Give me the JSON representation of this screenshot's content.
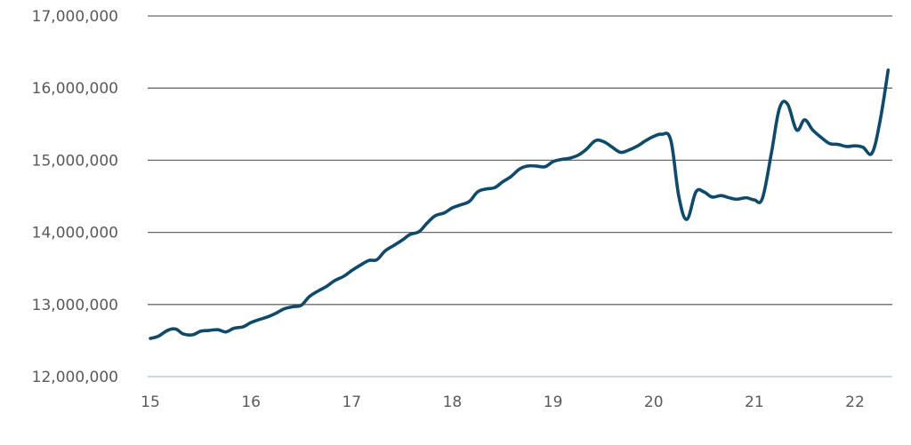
{
  "chart_data": {
    "type": "line",
    "title": "",
    "xlabel": "",
    "ylabel": "",
    "xlim": [
      15,
      22.35
    ],
    "ylim": [
      12000000,
      17000000
    ],
    "grid": true,
    "legend": "none",
    "x_ticks": [
      {
        "value": 15,
        "label": "15"
      },
      {
        "value": 16,
        "label": "16"
      },
      {
        "value": 17,
        "label": "17"
      },
      {
        "value": 18,
        "label": "18"
      },
      {
        "value": 19,
        "label": "19"
      },
      {
        "value": 20,
        "label": "20"
      },
      {
        "value": 21,
        "label": "21"
      },
      {
        "value": 22,
        "label": "22"
      }
    ],
    "y_ticks": [
      {
        "value": 12000000,
        "label": "12,000,000"
      },
      {
        "value": 13000000,
        "label": "13,000,000"
      },
      {
        "value": 14000000,
        "label": "14,000,000"
      },
      {
        "value": 15000000,
        "label": "15,000,000"
      },
      {
        "value": 16000000,
        "label": "16,000,000"
      },
      {
        "value": 17000000,
        "label": "17,000,000"
      }
    ],
    "series": [
      {
        "color": "#0d4a6b",
        "x": [
          15.0,
          15.08,
          15.17,
          15.25,
          15.33,
          15.42,
          15.5,
          15.58,
          15.67,
          15.75,
          15.83,
          15.92,
          16.0,
          16.08,
          16.17,
          16.25,
          16.33,
          16.42,
          16.5,
          16.58,
          16.67,
          16.75,
          16.83,
          16.92,
          17.0,
          17.08,
          17.17,
          17.25,
          17.33,
          17.42,
          17.5,
          17.58,
          17.67,
          17.75,
          17.83,
          17.92,
          18.0,
          18.08,
          18.17,
          18.25,
          18.33,
          18.42,
          18.5,
          18.58,
          18.67,
          18.75,
          18.83,
          18.92,
          19.0,
          19.08,
          19.17,
          19.25,
          19.33,
          19.42,
          19.5,
          19.58,
          19.67,
          19.75,
          19.83,
          19.92,
          20.0,
          20.08,
          20.17,
          20.25,
          20.33,
          20.42,
          20.5,
          20.58,
          20.67,
          20.75,
          20.83,
          20.92,
          21.0,
          21.08,
          21.17,
          21.25,
          21.33,
          21.42,
          21.5,
          21.58,
          21.67,
          21.75,
          21.83,
          21.92,
          22.0,
          22.08,
          22.17,
          22.25,
          22.33
        ],
        "values": [
          12530000,
          12560000,
          12640000,
          12660000,
          12590000,
          12580000,
          12630000,
          12640000,
          12650000,
          12620000,
          12670000,
          12690000,
          12750000,
          12790000,
          12830000,
          12880000,
          12940000,
          12970000,
          12990000,
          13110000,
          13190000,
          13250000,
          13330000,
          13390000,
          13470000,
          13540000,
          13610000,
          13620000,
          13740000,
          13820000,
          13890000,
          13970000,
          14010000,
          14130000,
          14230000,
          14270000,
          14340000,
          14380000,
          14430000,
          14560000,
          14600000,
          14620000,
          14700000,
          14770000,
          14880000,
          14920000,
          14920000,
          14910000,
          14980000,
          15010000,
          15030000,
          15070000,
          15150000,
          15270000,
          15260000,
          15190000,
          15110000,
          15140000,
          15190000,
          15270000,
          15330000,
          15360000,
          15280000,
          14500000,
          14180000,
          14560000,
          14560000,
          14490000,
          14510000,
          14480000,
          14460000,
          14480000,
          14450000,
          14470000,
          15100000,
          15720000,
          15780000,
          15420000,
          15560000,
          15420000,
          15310000,
          15230000,
          15220000,
          15190000,
          15200000,
          15180000,
          15100000,
          15550000,
          16250000
        ]
      }
    ]
  }
}
